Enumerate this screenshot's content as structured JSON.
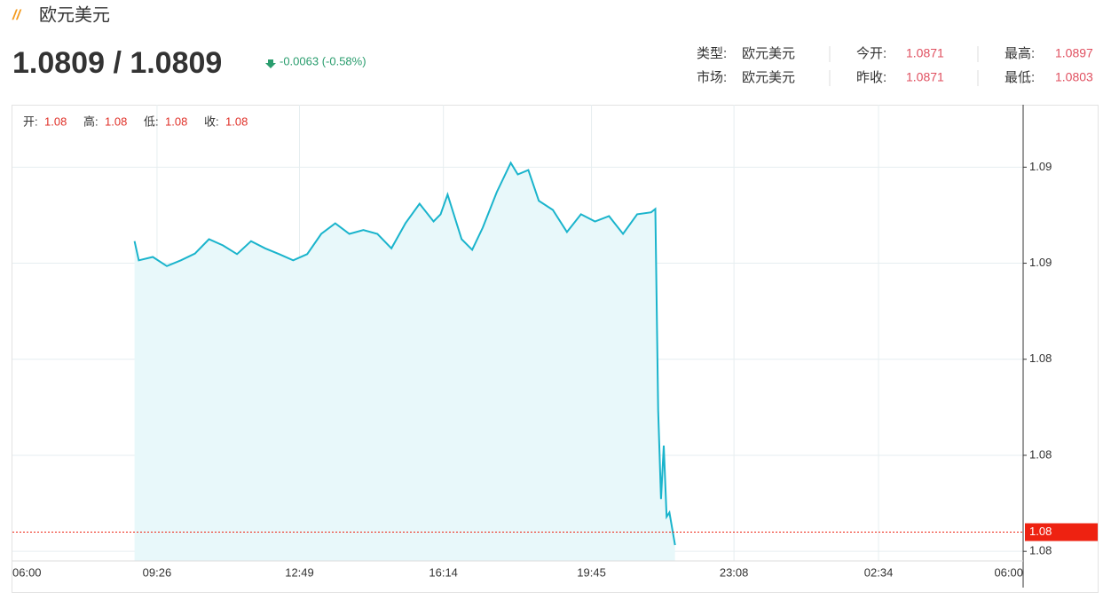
{
  "header": {
    "title": "欧元美元",
    "price": "1.0809 / 1.0809",
    "change": "-0.0063 (-0.58%)",
    "info": [
      {
        "label": "类型:",
        "value": "欧元美元"
      },
      {
        "label": "今开:",
        "value": "1.0871"
      },
      {
        "label": "最高:",
        "value": "1.0897"
      },
      {
        "label": "市场:",
        "value": "欧元美元"
      },
      {
        "label": "昨收:",
        "value": "1.0871"
      },
      {
        "label": "最低:",
        "value": "1.0803"
      }
    ]
  },
  "chart_data": {
    "type": "line",
    "ohlc": [
      {
        "label": "开:",
        "value": "1.08"
      },
      {
        "label": "高:",
        "value": "1.08"
      },
      {
        "label": "低:",
        "value": "1.08"
      },
      {
        "label": "收:",
        "value": "1.08"
      }
    ],
    "x": [
      "08:54",
      "09:00",
      "09:20",
      "09:40",
      "10:00",
      "10:20",
      "10:40",
      "11:00",
      "11:20",
      "11:40",
      "12:00",
      "12:20",
      "12:40",
      "13:00",
      "13:20",
      "13:40",
      "14:00",
      "14:20",
      "14:40",
      "15:00",
      "15:20",
      "15:40",
      "16:00",
      "16:10",
      "16:20",
      "16:40",
      "16:55",
      "17:10",
      "17:30",
      "17:50",
      "18:00",
      "18:15",
      "18:30",
      "18:50",
      "19:10",
      "19:30",
      "19:50",
      "20:10",
      "20:30",
      "20:50",
      "21:10",
      "21:16",
      "21:20",
      "21:24",
      "21:28",
      "21:32",
      "21:36",
      "21:44"
    ],
    "values": [
      1.08696,
      1.08656,
      1.08663,
      1.08644,
      1.08656,
      1.0867,
      1.087,
      1.08687,
      1.08669,
      1.08696,
      1.08681,
      1.08669,
      1.08656,
      1.08669,
      1.08711,
      1.08733,
      1.08711,
      1.08719,
      1.08711,
      1.08681,
      1.08733,
      1.08774,
      1.08737,
      1.08752,
      1.08793,
      1.087,
      1.08678,
      1.08724,
      1.08798,
      1.08859,
      1.08835,
      1.08844,
      1.0878,
      1.08761,
      1.08715,
      1.08752,
      1.08737,
      1.08748,
      1.08711,
      1.08752,
      1.08756,
      1.08763,
      1.08344,
      1.08159,
      1.0827,
      1.08122,
      1.08131,
      1.08063
    ],
    "color": "#1ab4cc",
    "fill": "#e8f8fa",
    "current_price": 1.0809,
    "current_price_label": "1.08",
    "current_color": "#ee2211",
    "xticks": [
      "06:00",
      "09:26",
      "12:49",
      "16:14",
      "19:45",
      "23:08",
      "02:34",
      "06:00"
    ],
    "ylim": [
      1.0803,
      1.0898
    ],
    "yticks": [
      {
        "value": 1.0805,
        "label": "1.08"
      },
      {
        "value": 1.0825,
        "label": "1.08"
      },
      {
        "value": 1.0845,
        "label": "1.08"
      },
      {
        "value": 1.0865,
        "label": "1.09"
      },
      {
        "value": 1.0885,
        "label": "1.09"
      }
    ],
    "grid": true
  }
}
